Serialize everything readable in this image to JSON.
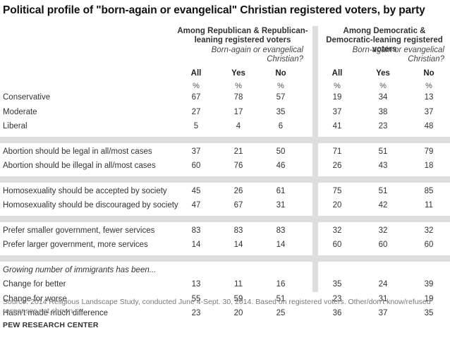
{
  "chart_data": {
    "type": "table",
    "title": "Political profile of \"born-again  or evangelical\" Christian registered voters, by party",
    "groups": [
      {
        "label": "Among Republican & Republican-leaning registered voters",
        "subhead": "Born-again or evangelical Christian?"
      },
      {
        "label": "Among Democratic & Democratic-leaning registered voters",
        "subhead": "Born-again or evangelical Christian?"
      }
    ],
    "columns": [
      "All",
      "Yes",
      "No",
      "All",
      "Yes",
      "No"
    ],
    "unit": "%",
    "sections": [
      {
        "rows": [
          {
            "label": "Conservative",
            "values": [
              67,
              78,
              57,
              19,
              34,
              13
            ]
          },
          {
            "label": "Moderate",
            "values": [
              27,
              17,
              35,
              37,
              38,
              37
            ]
          },
          {
            "label": "Liberal",
            "values": [
              5,
              4,
              6,
              41,
              23,
              48
            ]
          }
        ]
      },
      {
        "rows": [
          {
            "label": "Abortion should be legal in all/most cases",
            "values": [
              37,
              21,
              50,
              71,
              51,
              79
            ]
          },
          {
            "label": "Abortion should be illegal in all/most cases",
            "values": [
              60,
              76,
              46,
              26,
              43,
              18
            ]
          }
        ]
      },
      {
        "rows": [
          {
            "label": "Homosexuality should be accepted by society",
            "values": [
              45,
              26,
              61,
              75,
              51,
              85
            ]
          },
          {
            "label": "Homosexuality should be discouraged by society",
            "values": [
              47,
              67,
              31,
              20,
              42,
              11
            ]
          }
        ]
      },
      {
        "rows": [
          {
            "label": "Prefer smaller government, fewer services",
            "values": [
              83,
              83,
              83,
              32,
              32,
              32
            ]
          },
          {
            "label": "Prefer larger government, more services",
            "values": [
              14,
              14,
              14,
              60,
              60,
              60
            ]
          }
        ]
      },
      {
        "heading": "Growing number of immigrants has been...",
        "rows": [
          {
            "label": "Change for better",
            "values": [
              13,
              11,
              16,
              35,
              24,
              39
            ]
          },
          {
            "label": "Change for worse",
            "values": [
              55,
              59,
              51,
              23,
              31,
              19
            ]
          },
          {
            "label": "Hasn't made much difference",
            "values": [
              23,
              20,
              25,
              36,
              37,
              35
            ]
          }
        ]
      }
    ]
  },
  "source": "Source: 2014 Religious Landscape Study, conducted June 4-Sept. 30, 2014. Based on registered voters. Other/don't know/refused responses not shown.",
  "credit": "PEW RESEARCH CENTER",
  "colors": {
    "band": "#dedede",
    "text": "#333333",
    "source": "#7a7a7a"
  }
}
